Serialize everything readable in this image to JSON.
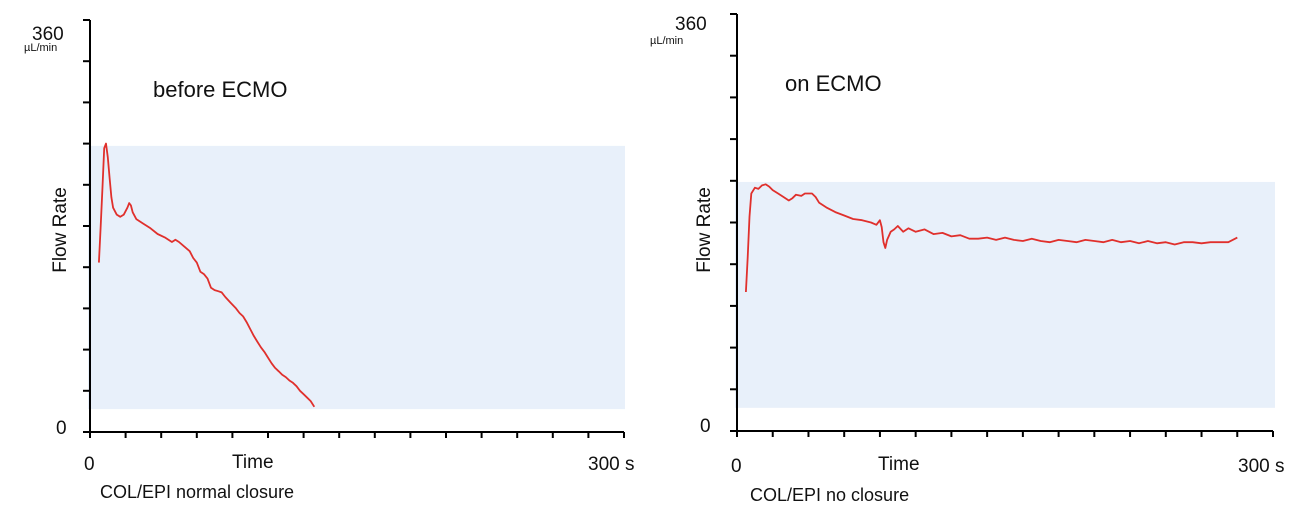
{
  "chart_data": [
    {
      "type": "line",
      "title": "before ECMO",
      "caption": "COL/EPI normal closure",
      "xlabel": "Time",
      "ylabel": "Flow Rate",
      "y_unit": "µL/min",
      "x_tick_labels": {
        "min": "0",
        "max": "300 s"
      },
      "y_tick_labels": {
        "min": "0",
        "max": "360"
      },
      "xlim": [
        0,
        300
      ],
      "ylim": [
        0,
        360
      ],
      "reference_band": [
        20,
        250
      ],
      "series": [
        {
          "color": "#e0302c",
          "points": [
            [
              5,
              148
            ],
            [
              6,
              180
            ],
            [
              7,
              214
            ],
            [
              8,
              248
            ],
            [
              9,
              252
            ],
            [
              10,
              240
            ],
            [
              11,
              222
            ],
            [
              12,
              205
            ],
            [
              13,
              196
            ],
            [
              15,
              190
            ],
            [
              17,
              188
            ],
            [
              19,
              190
            ],
            [
              21,
              196
            ],
            [
              22,
              200
            ],
            [
              23,
              198
            ],
            [
              24,
              192
            ],
            [
              26,
              186
            ],
            [
              30,
              182
            ],
            [
              34,
              178
            ],
            [
              38,
              173
            ],
            [
              42,
              170
            ],
            [
              46,
              166
            ],
            [
              48,
              168
            ],
            [
              50,
              166
            ],
            [
              53,
              162
            ],
            [
              56,
              158
            ],
            [
              58,
              152
            ],
            [
              60,
              148
            ],
            [
              62,
              140
            ],
            [
              64,
              138
            ],
            [
              66,
              134
            ],
            [
              68,
              126
            ],
            [
              70,
              124
            ],
            [
              72,
              123
            ],
            [
              74,
              122
            ],
            [
              76,
              118
            ],
            [
              79,
              113
            ],
            [
              82,
              108
            ],
            [
              84,
              104
            ],
            [
              86,
              101
            ],
            [
              88,
              96
            ],
            [
              90,
              90
            ],
            [
              92,
              84
            ],
            [
              94,
              79
            ],
            [
              96,
              74
            ],
            [
              98,
              70
            ],
            [
              100,
              65
            ],
            [
              102,
              60
            ],
            [
              104,
              56
            ],
            [
              106,
              53
            ],
            [
              108,
              50
            ],
            [
              110,
              48
            ],
            [
              112,
              45
            ],
            [
              114,
              43
            ],
            [
              116,
              40
            ],
            [
              118,
              36
            ],
            [
              120,
              33
            ],
            [
              122,
              30
            ],
            [
              124,
              27
            ],
            [
              126,
              22
            ]
          ]
        }
      ]
    },
    {
      "type": "line",
      "title": "on ECMO",
      "caption": "COL/EPI no closure",
      "xlabel": "Time",
      "ylabel": "Flow Rate",
      "y_unit": "µL/min",
      "x_tick_labels": {
        "min": "0",
        "max": "300 s"
      },
      "y_tick_labels": {
        "min": "0",
        "max": "360"
      },
      "xlim": [
        0,
        300
      ],
      "ylim": [
        0,
        360
      ],
      "reference_band": [
        20,
        215
      ],
      "series": [
        {
          "color": "#e0302c",
          "points": [
            [
              5,
              120
            ],
            [
              6,
              150
            ],
            [
              7,
              185
            ],
            [
              8,
              205
            ],
            [
              10,
              210
            ],
            [
              12,
              209
            ],
            [
              14,
              212
            ],
            [
              16,
              213
            ],
            [
              18,
              211
            ],
            [
              20,
              208
            ],
            [
              23,
              205
            ],
            [
              26,
              202
            ],
            [
              29,
              199
            ],
            [
              31,
              201
            ],
            [
              33,
              204
            ],
            [
              36,
              203
            ],
            [
              38,
              205
            ],
            [
              42,
              205
            ],
            [
              44,
              202
            ],
            [
              46,
              197
            ],
            [
              50,
              193
            ],
            [
              55,
              189
            ],
            [
              60,
              186
            ],
            [
              65,
              183
            ],
            [
              70,
              182
            ],
            [
              75,
              180
            ],
            [
              78,
              178
            ],
            [
              80,
              182
            ],
            [
              81,
              176
            ],
            [
              82,
              163
            ],
            [
              83,
              158
            ],
            [
              84,
              165
            ],
            [
              86,
              172
            ],
            [
              88,
              174
            ],
            [
              90,
              177
            ],
            [
              93,
              172
            ],
            [
              96,
              175
            ],
            [
              100,
              172
            ],
            [
              105,
              174
            ],
            [
              110,
              170
            ],
            [
              115,
              171
            ],
            [
              120,
              168
            ],
            [
              125,
              169
            ],
            [
              130,
              166
            ],
            [
              135,
              166
            ],
            [
              140,
              167
            ],
            [
              145,
              165
            ],
            [
              150,
              167
            ],
            [
              155,
              165
            ],
            [
              160,
              164
            ],
            [
              165,
              166
            ],
            [
              170,
              164
            ],
            [
              175,
              163
            ],
            [
              180,
              165
            ],
            [
              185,
              164
            ],
            [
              190,
              163
            ],
            [
              195,
              165
            ],
            [
              200,
              164
            ],
            [
              205,
              163
            ],
            [
              210,
              165
            ],
            [
              215,
              163
            ],
            [
              220,
              164
            ],
            [
              225,
              162
            ],
            [
              230,
              164
            ],
            [
              235,
              162
            ],
            [
              240,
              163
            ],
            [
              245,
              161
            ],
            [
              250,
              163
            ],
            [
              255,
              163
            ],
            [
              260,
              162
            ],
            [
              265,
              163
            ],
            [
              270,
              163
            ],
            [
              275,
              163
            ],
            [
              280,
              167
            ]
          ]
        }
      ]
    }
  ]
}
